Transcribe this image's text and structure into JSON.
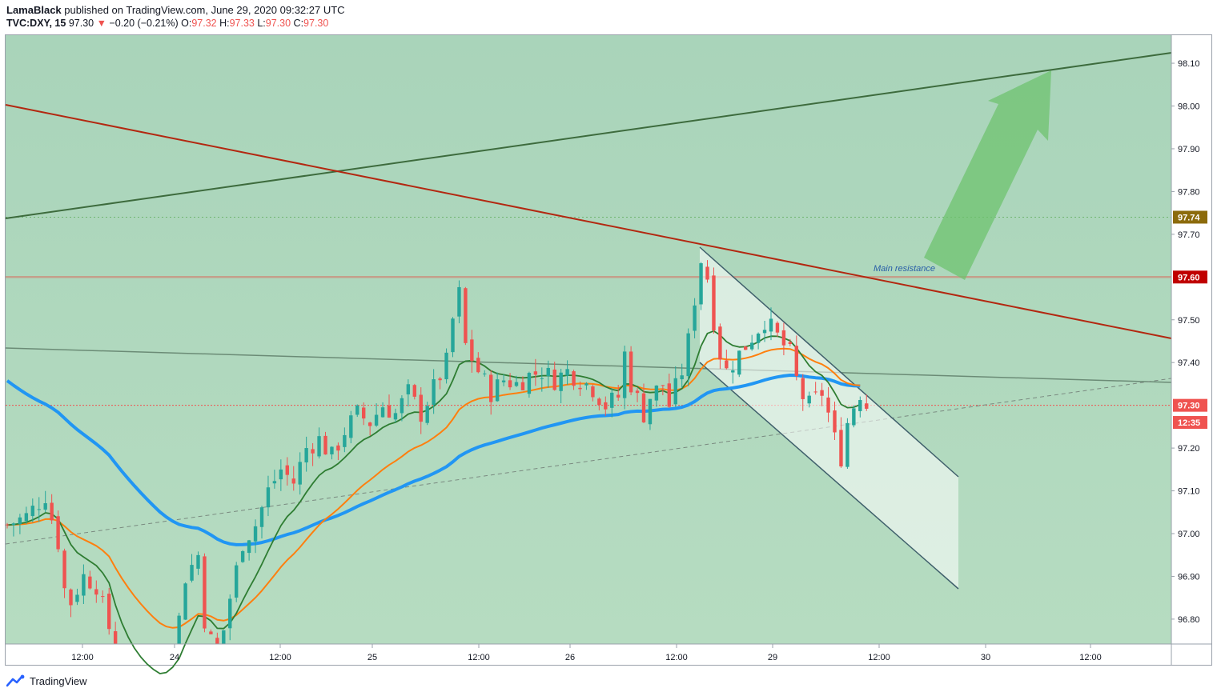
{
  "header": {
    "author": "LamaBlack",
    "published_text": "published on TradingView.com, June 29, 2020 09:32:27 UTC",
    "symbol": "TVC:DXY, 15",
    "last": "97.30",
    "change_arrow": "▼",
    "change": "−0.20 (−0.21%)",
    "o_label": "O:",
    "o_value": "97.32",
    "h_label": "H:",
    "h_value": "97.33",
    "l_label": "L:",
    "l_value": "97.30",
    "c_label": "C:",
    "c_value": "97.30"
  },
  "footer": {
    "logo_text": "TradingView",
    "logo_icon": "tradingview-logo-icon"
  },
  "colors": {
    "bg_upper": "#acd6bc",
    "bg_lower": "#b6dcc1",
    "up": "#26a69a",
    "down": "#ef5350",
    "ma_blue": "#2196f3",
    "ma_orange": "#ff7f0e",
    "ma_green": "#2e7d32",
    "resistance": "#b32710",
    "uptrend": "#3d6b3d",
    "channel": "#3f5f6b",
    "label_9774": "#8c6b0c",
    "label_9760": "#c00000",
    "label_price": "#ef5350"
  },
  "chart_data": {
    "type": "candlestick",
    "title": "",
    "ylim": [
      96.73,
      98.19
    ],
    "y_ticks": [
      "98.10",
      "98.00",
      "97.90",
      "97.80",
      "97.70",
      "97.40",
      "97.20",
      "97.10",
      "97.00",
      "96.90",
      "96.80"
    ],
    "x_ticks": [
      "12:00",
      "24",
      "12:00",
      "25",
      "12:00",
      "26",
      "12:00",
      "29",
      "12:00",
      "30",
      "12:00"
    ],
    "price_labels": [
      {
        "text": "97.74",
        "value": 97.74,
        "color": "#8c6b0c"
      },
      {
        "text": "97.60",
        "value": 97.6,
        "color": "#c00000"
      },
      {
        "text": "97.50",
        "value": 97.5,
        "color": ""
      },
      {
        "text": "97.30",
        "value": 97.3,
        "color": "#ef5350"
      },
      {
        "text": "12:35",
        "value": 97.26,
        "color": "#ef5350"
      }
    ],
    "annotation": "Main resistance",
    "levels": [
      97.74,
      97.6,
      97.3
    ],
    "close_path": [
      [
        0,
        97.02
      ],
      [
        3,
        97.04
      ],
      [
        6,
        97.09
      ],
      [
        8,
        96.98
      ],
      [
        9,
        96.87
      ],
      [
        10,
        96.84
      ],
      [
        12,
        96.9
      ],
      [
        14,
        96.88
      ],
      [
        16,
        96.78
      ],
      [
        17,
        96.6
      ],
      [
        24,
        96.63
      ],
      [
        27,
        96.8
      ],
      [
        28,
        96.9
      ],
      [
        30,
        96.95
      ],
      [
        31,
        96.8
      ],
      [
        33,
        96.7
      ],
      [
        35,
        96.85
      ],
      [
        37,
        96.98
      ],
      [
        39,
        97.02
      ],
      [
        41,
        97.1
      ],
      [
        43,
        97.15
      ],
      [
        45,
        97.12
      ],
      [
        47,
        97.2
      ],
      [
        49,
        97.22
      ],
      [
        51,
        97.18
      ],
      [
        53,
        97.24
      ],
      [
        55,
        97.28
      ],
      [
        57,
        97.26
      ],
      [
        59,
        97.3
      ],
      [
        61,
        97.28
      ],
      [
        63,
        97.33
      ],
      [
        65,
        97.28
      ],
      [
        67,
        97.34
      ],
      [
        69,
        97.4
      ],
      [
        70,
        97.5
      ],
      [
        71,
        97.56
      ],
      [
        72,
        97.44
      ],
      [
        74,
        97.38
      ],
      [
        76,
        97.33
      ],
      [
        78,
        97.36
      ],
      [
        80,
        97.35
      ],
      [
        82,
        97.37
      ],
      [
        84,
        97.38
      ],
      [
        86,
        97.36
      ],
      [
        88,
        97.38
      ],
      [
        90,
        97.36
      ],
      [
        92,
        97.34
      ],
      [
        94,
        97.3
      ],
      [
        96,
        97.32
      ],
      [
        97,
        97.42
      ],
      [
        98,
        97.35
      ],
      [
        100,
        97.28
      ],
      [
        101,
        97.32
      ],
      [
        103,
        97.35
      ],
      [
        104,
        97.3
      ],
      [
        106,
        97.38
      ],
      [
        107,
        97.45
      ],
      [
        108,
        97.55
      ],
      [
        109,
        97.64
      ],
      [
        110,
        97.6
      ],
      [
        111,
        97.5
      ],
      [
        112,
        97.42
      ],
      [
        113,
        97.38
      ],
      [
        114,
        97.4
      ],
      [
        116,
        97.44
      ],
      [
        118,
        97.48
      ],
      [
        119,
        97.5
      ],
      [
        120,
        97.48
      ],
      [
        122,
        97.44
      ],
      [
        123,
        97.42
      ],
      [
        124,
        97.36
      ],
      [
        125,
        97.32
      ],
      [
        126,
        97.3
      ],
      [
        128,
        97.33
      ],
      [
        129,
        97.28
      ],
      [
        130,
        97.22
      ],
      [
        131,
        97.18
      ],
      [
        132,
        97.26
      ],
      [
        133,
        97.3
      ],
      [
        134,
        97.33
      ],
      [
        135,
        97.3
      ]
    ]
  }
}
